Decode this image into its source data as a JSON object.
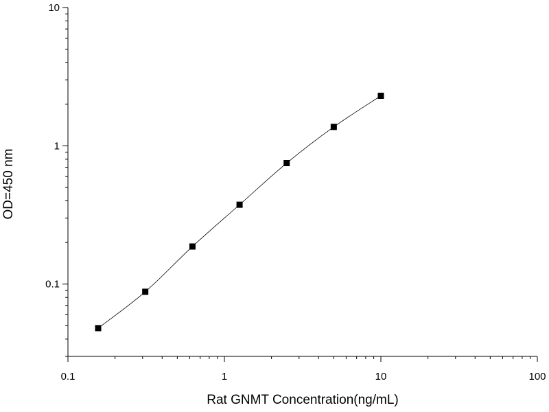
{
  "chart_data": {
    "type": "scatter",
    "title": "",
    "xlabel": "Rat GNMT Concentration(ng/mL)",
    "ylabel": "OD=450 nm",
    "x_scale": "log",
    "y_scale": "log",
    "xlim": [
      0.1,
      100
    ],
    "ylim": [
      0.03,
      10
    ],
    "x_ticks": [
      0.1,
      1,
      10,
      100
    ],
    "x_tick_labels": [
      "0.1",
      "1",
      "10",
      "100"
    ],
    "y_ticks": [
      0.1,
      1,
      10
    ],
    "y_tick_labels": [
      "0.1",
      "1",
      "10"
    ],
    "grid": false,
    "legend": false,
    "series": [
      {
        "x": [
          0.156,
          0.312,
          0.625,
          1.25,
          2.5,
          5,
          10
        ],
        "y": [
          0.048,
          0.088,
          0.187,
          0.375,
          0.75,
          1.37,
          2.3
        ],
        "marker": "square",
        "line": "smooth",
        "color": "#000000"
      }
    ]
  }
}
